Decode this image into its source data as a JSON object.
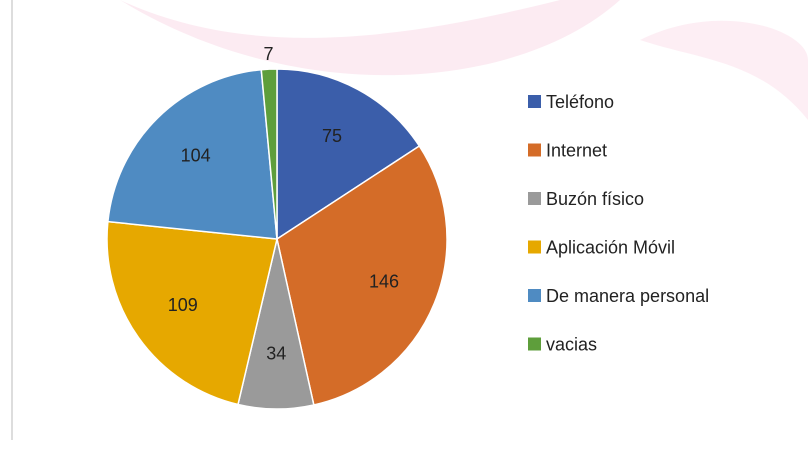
{
  "chart_data": {
    "type": "pie",
    "categories": [
      "Teléfono",
      "Internet",
      "Buzón físico",
      "Aplicación Móvil",
      "De manera personal",
      "vacias"
    ],
    "values": [
      75,
      146,
      34,
      109,
      104,
      7
    ],
    "colors": [
      "#3b5eaa",
      "#d46c28",
      "#9a9a9a",
      "#e6a800",
      "#4f8bc2",
      "#5e9e3b"
    ],
    "legend": "right"
  }
}
